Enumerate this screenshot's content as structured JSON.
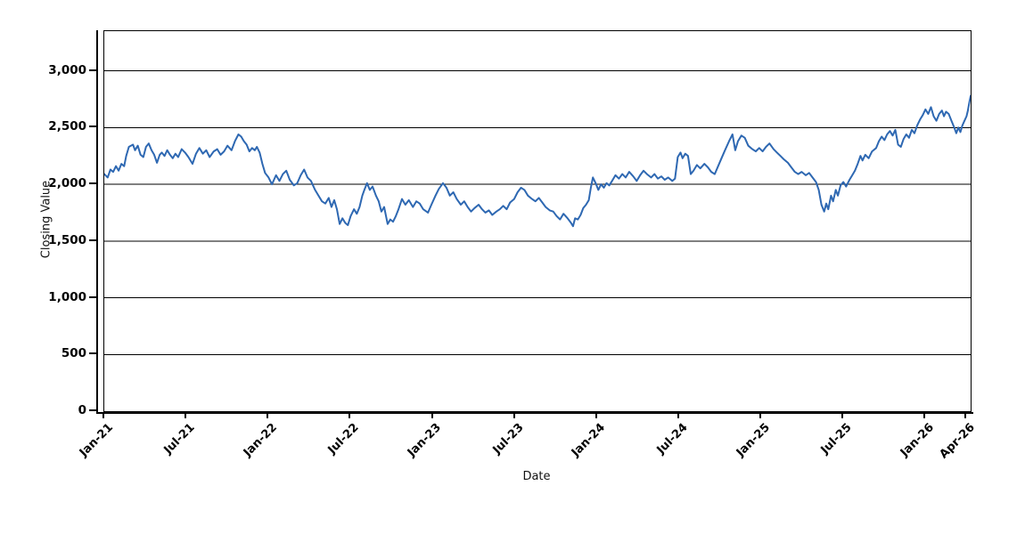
{
  "figure": {
    "title": "",
    "x_axis": {
      "label": "Date",
      "tick_labels": [
        "Jan-21",
        "Jul-21",
        "Jan-22",
        "Jul-22",
        "Jan-23",
        "Jul-23",
        "Jan-24",
        "Jul-24",
        "Jan-25",
        "Jul-25",
        "Jan-26",
        "Apr-26"
      ],
      "tick_months": [
        0,
        6,
        12,
        18,
        24,
        30,
        36,
        42,
        48,
        54,
        60,
        63
      ]
    },
    "y_axis": {
      "label": "Closing Value",
      "tick_labels": [
        "0",
        "500",
        "1,000",
        "1,500",
        "2,000",
        "2,500",
        "3,000"
      ],
      "tick_values": [
        0,
        500,
        1000,
        1500,
        2000,
        2500,
        3000
      ]
    },
    "style": {
      "line_color": "#2e68b2",
      "grid_color": "#000000",
      "axis_color": "#000000",
      "background": "#ffffff"
    }
  },
  "chart_data": {
    "type": "line",
    "title": "",
    "xlabel": "Date",
    "ylabel": "Closing Value",
    "x_unit": "months since Jan-2021",
    "x_start_label": "Jan-21",
    "x_end_label": "Apr-26",
    "xlim_months": [
      0,
      63.3
    ],
    "ylim": [
      0,
      3350
    ],
    "grid": "horizontal-only",
    "legend": "none",
    "series": [
      {
        "name": "Closing Value",
        "points": [
          [
            0,
            2090
          ],
          [
            0.25,
            2060
          ],
          [
            0.45,
            2130
          ],
          [
            0.65,
            2110
          ],
          [
            0.85,
            2160
          ],
          [
            1.05,
            2120
          ],
          [
            1.25,
            2180
          ],
          [
            1.45,
            2160
          ],
          [
            1.6,
            2250
          ],
          [
            1.8,
            2330
          ],
          [
            2.1,
            2350
          ],
          [
            2.25,
            2300
          ],
          [
            2.45,
            2340
          ],
          [
            2.65,
            2260
          ],
          [
            2.85,
            2240
          ],
          [
            3.05,
            2330
          ],
          [
            3.25,
            2360
          ],
          [
            3.45,
            2300
          ],
          [
            3.65,
            2260
          ],
          [
            3.85,
            2190
          ],
          [
            4.05,
            2260
          ],
          [
            4.2,
            2280
          ],
          [
            4.4,
            2250
          ],
          [
            4.6,
            2300
          ],
          [
            4.8,
            2260
          ],
          [
            5,
            2230
          ],
          [
            5.2,
            2270
          ],
          [
            5.4,
            2240
          ],
          [
            5.65,
            2310
          ],
          [
            5.9,
            2280
          ],
          [
            6.15,
            2240
          ],
          [
            6.45,
            2180
          ],
          [
            6.7,
            2270
          ],
          [
            6.95,
            2320
          ],
          [
            7.2,
            2270
          ],
          [
            7.45,
            2300
          ],
          [
            7.7,
            2240
          ],
          [
            8,
            2290
          ],
          [
            8.25,
            2310
          ],
          [
            8.5,
            2260
          ],
          [
            8.75,
            2290
          ],
          [
            9,
            2340
          ],
          [
            9.3,
            2300
          ],
          [
            9.55,
            2380
          ],
          [
            9.8,
            2440
          ],
          [
            10,
            2420
          ],
          [
            10.2,
            2380
          ],
          [
            10.4,
            2350
          ],
          [
            10.6,
            2290
          ],
          [
            10.8,
            2320
          ],
          [
            11,
            2300
          ],
          [
            11.15,
            2330
          ],
          [
            11.35,
            2280
          ],
          [
            11.55,
            2180
          ],
          [
            11.75,
            2100
          ],
          [
            12,
            2060
          ],
          [
            12.25,
            2000
          ],
          [
            12.55,
            2080
          ],
          [
            12.8,
            2030
          ],
          [
            13.05,
            2090
          ],
          [
            13.3,
            2120
          ],
          [
            13.55,
            2040
          ],
          [
            13.85,
            1990
          ],
          [
            14.1,
            2010
          ],
          [
            14.35,
            2080
          ],
          [
            14.6,
            2130
          ],
          [
            14.85,
            2060
          ],
          [
            15.1,
            2030
          ],
          [
            15.4,
            1950
          ],
          [
            15.65,
            1900
          ],
          [
            15.9,
            1850
          ],
          [
            16.15,
            1830
          ],
          [
            16.4,
            1880
          ],
          [
            16.6,
            1800
          ],
          [
            16.8,
            1860
          ],
          [
            17,
            1780
          ],
          [
            17.2,
            1650
          ],
          [
            17.4,
            1700
          ],
          [
            17.6,
            1660
          ],
          [
            17.8,
            1640
          ],
          [
            18,
            1720
          ],
          [
            18.25,
            1780
          ],
          [
            18.45,
            1740
          ],
          [
            18.65,
            1800
          ],
          [
            18.85,
            1900
          ],
          [
            19,
            1950
          ],
          [
            19.2,
            2010
          ],
          [
            19.4,
            1950
          ],
          [
            19.6,
            1980
          ],
          [
            19.85,
            1900
          ],
          [
            20.05,
            1850
          ],
          [
            20.25,
            1760
          ],
          [
            20.45,
            1800
          ],
          [
            20.7,
            1650
          ],
          [
            20.9,
            1690
          ],
          [
            21.1,
            1670
          ],
          [
            21.3,
            1720
          ],
          [
            21.5,
            1780
          ],
          [
            21.75,
            1870
          ],
          [
            22,
            1820
          ],
          [
            22.25,
            1860
          ],
          [
            22.55,
            1800
          ],
          [
            22.8,
            1850
          ],
          [
            23.05,
            1830
          ],
          [
            23.3,
            1780
          ],
          [
            23.65,
            1750
          ],
          [
            23.9,
            1820
          ],
          [
            24.2,
            1900
          ],
          [
            24.45,
            1960
          ],
          [
            24.75,
            2010
          ],
          [
            25,
            1970
          ],
          [
            25.25,
            1900
          ],
          [
            25.5,
            1930
          ],
          [
            25.75,
            1870
          ],
          [
            26.05,
            1820
          ],
          [
            26.3,
            1850
          ],
          [
            26.55,
            1800
          ],
          [
            26.8,
            1760
          ],
          [
            27.05,
            1790
          ],
          [
            27.35,
            1820
          ],
          [
            27.6,
            1780
          ],
          [
            27.85,
            1750
          ],
          [
            28.1,
            1770
          ],
          [
            28.35,
            1730
          ],
          [
            28.65,
            1760
          ],
          [
            28.9,
            1780
          ],
          [
            29.15,
            1810
          ],
          [
            29.4,
            1780
          ],
          [
            29.65,
            1840
          ],
          [
            29.95,
            1870
          ],
          [
            30.2,
            1930
          ],
          [
            30.45,
            1970
          ],
          [
            30.7,
            1950
          ],
          [
            30.95,
            1900
          ],
          [
            31.25,
            1870
          ],
          [
            31.5,
            1850
          ],
          [
            31.75,
            1880
          ],
          [
            32,
            1840
          ],
          [
            32.25,
            1800
          ],
          [
            32.55,
            1770
          ],
          [
            32.8,
            1760
          ],
          [
            33.05,
            1720
          ],
          [
            33.3,
            1690
          ],
          [
            33.55,
            1740
          ],
          [
            33.85,
            1700
          ],
          [
            34.1,
            1660
          ],
          [
            34.25,
            1630
          ],
          [
            34.4,
            1700
          ],
          [
            34.6,
            1690
          ],
          [
            34.8,
            1730
          ],
          [
            35,
            1790
          ],
          [
            35.2,
            1820
          ],
          [
            35.4,
            1860
          ],
          [
            35.55,
            1970
          ],
          [
            35.7,
            2060
          ],
          [
            35.9,
            2010
          ],
          [
            36.1,
            1950
          ],
          [
            36.3,
            2000
          ],
          [
            36.5,
            1970
          ],
          [
            36.7,
            2010
          ],
          [
            36.9,
            1990
          ],
          [
            37.1,
            2030
          ],
          [
            37.35,
            2080
          ],
          [
            37.6,
            2050
          ],
          [
            37.85,
            2090
          ],
          [
            38.1,
            2060
          ],
          [
            38.35,
            2110
          ],
          [
            38.65,
            2070
          ],
          [
            38.9,
            2030
          ],
          [
            39.15,
            2080
          ],
          [
            39.4,
            2120
          ],
          [
            39.65,
            2090
          ],
          [
            39.95,
            2060
          ],
          [
            40.2,
            2090
          ],
          [
            40.45,
            2050
          ],
          [
            40.7,
            2070
          ],
          [
            40.95,
            2040
          ],
          [
            41.2,
            2060
          ],
          [
            41.5,
            2030
          ],
          [
            41.7,
            2050
          ],
          [
            41.9,
            2240
          ],
          [
            42.1,
            2280
          ],
          [
            42.25,
            2230
          ],
          [
            42.45,
            2270
          ],
          [
            42.65,
            2250
          ],
          [
            42.85,
            2090
          ],
          [
            43.05,
            2120
          ],
          [
            43.3,
            2170
          ],
          [
            43.55,
            2140
          ],
          [
            43.85,
            2180
          ],
          [
            44.1,
            2150
          ],
          [
            44.35,
            2110
          ],
          [
            44.6,
            2090
          ],
          [
            44.85,
            2160
          ],
          [
            45.1,
            2230
          ],
          [
            45.35,
            2300
          ],
          [
            45.65,
            2380
          ],
          [
            45.9,
            2440
          ],
          [
            46.1,
            2300
          ],
          [
            46.3,
            2380
          ],
          [
            46.55,
            2430
          ],
          [
            46.8,
            2410
          ],
          [
            47.05,
            2340
          ],
          [
            47.35,
            2310
          ],
          [
            47.6,
            2290
          ],
          [
            47.85,
            2320
          ],
          [
            48.1,
            2290
          ],
          [
            48.35,
            2330
          ],
          [
            48.6,
            2360
          ],
          [
            48.9,
            2310
          ],
          [
            49.15,
            2280
          ],
          [
            49.4,
            2250
          ],
          [
            49.65,
            2220
          ],
          [
            49.95,
            2190
          ],
          [
            50.2,
            2150
          ],
          [
            50.45,
            2110
          ],
          [
            50.7,
            2090
          ],
          [
            50.95,
            2110
          ],
          [
            51.25,
            2080
          ],
          [
            51.5,
            2100
          ],
          [
            51.75,
            2060
          ],
          [
            52,
            2020
          ],
          [
            52.2,
            1950
          ],
          [
            52.4,
            1820
          ],
          [
            52.6,
            1760
          ],
          [
            52.75,
            1830
          ],
          [
            52.9,
            1780
          ],
          [
            53.1,
            1900
          ],
          [
            53.25,
            1850
          ],
          [
            53.45,
            1950
          ],
          [
            53.6,
            1900
          ],
          [
            53.8,
            1990
          ],
          [
            54,
            2020
          ],
          [
            54.2,
            1980
          ],
          [
            54.45,
            2040
          ],
          [
            54.65,
            2080
          ],
          [
            54.85,
            2120
          ],
          [
            55.05,
            2180
          ],
          [
            55.25,
            2250
          ],
          [
            55.4,
            2210
          ],
          [
            55.6,
            2260
          ],
          [
            55.85,
            2230
          ],
          [
            56.1,
            2290
          ],
          [
            56.4,
            2320
          ],
          [
            56.6,
            2380
          ],
          [
            56.8,
            2420
          ],
          [
            57,
            2390
          ],
          [
            57.2,
            2440
          ],
          [
            57.4,
            2470
          ],
          [
            57.6,
            2430
          ],
          [
            57.8,
            2480
          ],
          [
            58,
            2350
          ],
          [
            58.2,
            2330
          ],
          [
            58.4,
            2400
          ],
          [
            58.6,
            2440
          ],
          [
            58.8,
            2410
          ],
          [
            59,
            2480
          ],
          [
            59.2,
            2450
          ],
          [
            59.4,
            2520
          ],
          [
            59.6,
            2570
          ],
          [
            59.8,
            2610
          ],
          [
            60,
            2660
          ],
          [
            60.2,
            2620
          ],
          [
            60.4,
            2680
          ],
          [
            60.6,
            2600
          ],
          [
            60.8,
            2560
          ],
          [
            61,
            2620
          ],
          [
            61.2,
            2650
          ],
          [
            61.35,
            2600
          ],
          [
            61.5,
            2640
          ],
          [
            61.7,
            2620
          ],
          [
            61.9,
            2560
          ],
          [
            62.1,
            2500
          ],
          [
            62.25,
            2450
          ],
          [
            62.4,
            2500
          ],
          [
            62.55,
            2460
          ],
          [
            62.7,
            2520
          ],
          [
            62.85,
            2560
          ],
          [
            63,
            2600
          ],
          [
            63.1,
            2650
          ],
          [
            63.2,
            2720
          ],
          [
            63.3,
            2780
          ]
        ]
      }
    ]
  }
}
